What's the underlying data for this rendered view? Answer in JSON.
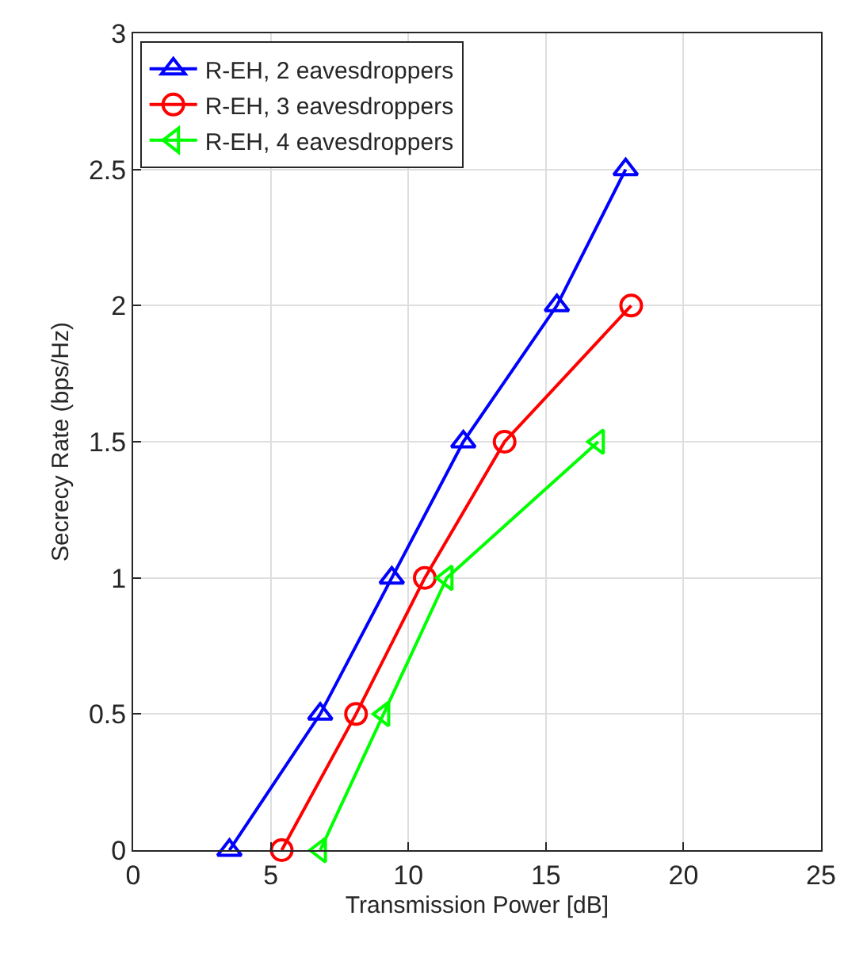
{
  "chart_data": {
    "type": "line",
    "xlabel": "Transmission Power [dB]",
    "ylabel": "Secrecy Rate (bps/Hz)",
    "xlim": [
      0,
      25
    ],
    "xticks": [
      0,
      5,
      10,
      15,
      20,
      25
    ],
    "ylim": [
      0,
      3
    ],
    "yticks": [
      0,
      0.5,
      1,
      1.5,
      2,
      2.5,
      3
    ],
    "grid": true,
    "legend": "top left",
    "line_style": "solid",
    "series": [
      {
        "name": "R-EH, 2 eavesdroppers",
        "color": "#0000ff",
        "marker": "triangle",
        "x": [
          3.5,
          6.8,
          9.4,
          12.0,
          15.4,
          17.9
        ],
        "values": [
          0,
          0.5,
          1,
          1.5,
          2,
          2.5
        ]
      },
      {
        "name": "R-EH, 3 eavesdroppers",
        "color": "#ff0000",
        "marker": "circle",
        "x": [
          5.4,
          8.1,
          10.6,
          13.5,
          18.1
        ],
        "values": [
          0,
          0.5,
          1,
          1.5,
          2
        ]
      },
      {
        "name": "R-EH, 4 eavesdroppers",
        "color": "#00ff00",
        "marker": "triangle-left",
        "x": [
          6.8,
          9.1,
          11.4,
          16.9
        ],
        "values": [
          0,
          0.5,
          1,
          1.5
        ]
      }
    ]
  }
}
